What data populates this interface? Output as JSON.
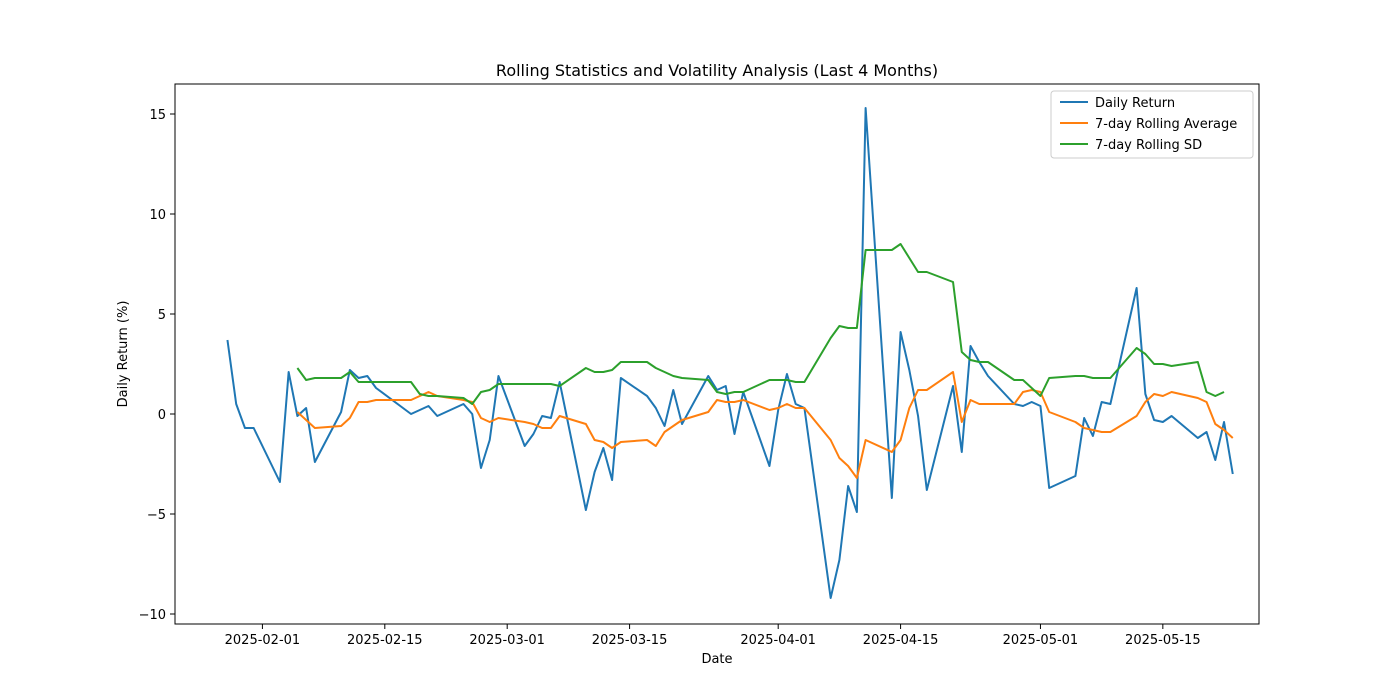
{
  "chart_data": {
    "type": "line",
    "title": "Rolling Statistics and Volatility Analysis (Last 4 Months)",
    "xlabel": "Date",
    "ylabel": "Daily Return (%)",
    "xlim": [
      "2025-01-22",
      "2025-05-26"
    ],
    "ylim": [
      -10.5,
      16.5
    ],
    "x_ticks": [
      "2025-02-01",
      "2025-02-15",
      "2025-03-01",
      "2025-03-15",
      "2025-04-01",
      "2025-04-15",
      "2025-05-01",
      "2025-05-15"
    ],
    "y_ticks": [
      -10,
      -5,
      0,
      5,
      10,
      15
    ],
    "grid": false,
    "legend_position": "top-right",
    "series": [
      {
        "name": "Daily Return",
        "color": "#1f77b4",
        "points": [
          [
            "2025-01-28",
            3.7
          ],
          [
            "2025-01-29",
            0.5
          ],
          [
            "2025-01-30",
            -0.7
          ],
          [
            "2025-01-31",
            -0.7
          ],
          [
            "2025-02-03",
            -3.4
          ],
          [
            "2025-02-04",
            2.1
          ],
          [
            "2025-02-05",
            -0.1
          ],
          [
            "2025-02-06",
            0.3
          ],
          [
            "2025-02-07",
            -2.4
          ],
          [
            "2025-02-10",
            0.1
          ],
          [
            "2025-02-11",
            2.2
          ],
          [
            "2025-02-12",
            1.8
          ],
          [
            "2025-02-13",
            1.9
          ],
          [
            "2025-02-14",
            1.3
          ],
          [
            "2025-02-18",
            0.0
          ],
          [
            "2025-02-20",
            0.4
          ],
          [
            "2025-02-21",
            -0.1
          ],
          [
            "2025-02-24",
            0.5
          ],
          [
            "2025-02-25",
            0.0
          ],
          [
            "2025-02-26",
            -2.7
          ],
          [
            "2025-02-27",
            -1.3
          ],
          [
            "2025-02-28",
            1.9
          ],
          [
            "2025-03-03",
            -1.6
          ],
          [
            "2025-03-04",
            -1.0
          ],
          [
            "2025-03-05",
            -0.1
          ],
          [
            "2025-03-06",
            -0.2
          ],
          [
            "2025-03-07",
            1.6
          ],
          [
            "2025-03-10",
            -4.8
          ],
          [
            "2025-03-11",
            -2.9
          ],
          [
            "2025-03-12",
            -1.7
          ],
          [
            "2025-03-13",
            -3.3
          ],
          [
            "2025-03-14",
            1.8
          ],
          [
            "2025-03-17",
            0.9
          ],
          [
            "2025-03-18",
            0.3
          ],
          [
            "2025-03-19",
            -0.6
          ],
          [
            "2025-03-20",
            1.2
          ],
          [
            "2025-03-21",
            -0.5
          ],
          [
            "2025-03-24",
            1.9
          ],
          [
            "2025-03-25",
            1.2
          ],
          [
            "2025-03-26",
            1.4
          ],
          [
            "2025-03-27",
            -1.0
          ],
          [
            "2025-03-28",
            1.1
          ],
          [
            "2025-03-31",
            -2.6
          ],
          [
            "2025-04-01",
            0.2
          ],
          [
            "2025-04-02",
            2.0
          ],
          [
            "2025-04-03",
            0.5
          ],
          [
            "2025-04-04",
            0.3
          ],
          [
            "2025-04-07",
            -9.2
          ],
          [
            "2025-04-08",
            -7.3
          ],
          [
            "2025-04-09",
            -3.6
          ],
          [
            "2025-04-10",
            -4.9
          ],
          [
            "2025-04-11",
            15.3
          ],
          [
            "2025-04-14",
            -4.2
          ],
          [
            "2025-04-15",
            4.1
          ],
          [
            "2025-04-16",
            2.2
          ],
          [
            "2025-04-17",
            -0.1
          ],
          [
            "2025-04-18",
            -3.8
          ],
          [
            "2025-04-21",
            1.4
          ],
          [
            "2025-04-22",
            -1.9
          ],
          [
            "2025-04-23",
            3.4
          ],
          [
            "2025-04-24",
            2.6
          ],
          [
            "2025-04-25",
            1.9
          ],
          [
            "2025-04-28",
            0.5
          ],
          [
            "2025-04-29",
            0.4
          ],
          [
            "2025-04-30",
            0.6
          ],
          [
            "2025-05-01",
            0.4
          ],
          [
            "2025-05-02",
            -3.7
          ],
          [
            "2025-05-05",
            -3.1
          ],
          [
            "2025-05-06",
            -0.2
          ],
          [
            "2025-05-07",
            -1.1
          ],
          [
            "2025-05-08",
            0.6
          ],
          [
            "2025-05-09",
            0.5
          ],
          [
            "2025-05-12",
            6.3
          ],
          [
            "2025-05-13",
            1.0
          ],
          [
            "2025-05-14",
            -0.3
          ],
          [
            "2025-05-15",
            -0.4
          ],
          [
            "2025-05-16",
            -0.1
          ],
          [
            "2025-05-19",
            -1.2
          ],
          [
            "2025-05-20",
            -0.9
          ],
          [
            "2025-05-21",
            -2.3
          ],
          [
            "2025-05-22",
            -0.4
          ],
          [
            "2025-05-23",
            -3.0
          ]
        ]
      },
      {
        "name": "7-day Rolling Average",
        "color": "#ff7f0e",
        "points": [
          [
            "2025-02-05",
            0.1
          ],
          [
            "2025-02-06",
            -0.3
          ],
          [
            "2025-02-07",
            -0.7
          ],
          [
            "2025-02-10",
            -0.6
          ],
          [
            "2025-02-11",
            -0.2
          ],
          [
            "2025-02-12",
            0.6
          ],
          [
            "2025-02-13",
            0.6
          ],
          [
            "2025-02-14",
            0.7
          ],
          [
            "2025-02-18",
            0.7
          ],
          [
            "2025-02-20",
            1.1
          ],
          [
            "2025-02-21",
            0.9
          ],
          [
            "2025-02-24",
            0.7
          ],
          [
            "2025-02-25",
            0.6
          ],
          [
            "2025-02-26",
            -0.2
          ],
          [
            "2025-02-27",
            -0.4
          ],
          [
            "2025-02-28",
            -0.2
          ],
          [
            "2025-03-03",
            -0.4
          ],
          [
            "2025-03-04",
            -0.5
          ],
          [
            "2025-03-05",
            -0.7
          ],
          [
            "2025-03-06",
            -0.7
          ],
          [
            "2025-03-07",
            -0.1
          ],
          [
            "2025-03-10",
            -0.5
          ],
          [
            "2025-03-11",
            -1.3
          ],
          [
            "2025-03-12",
            -1.4
          ],
          [
            "2025-03-13",
            -1.7
          ],
          [
            "2025-03-14",
            -1.4
          ],
          [
            "2025-03-17",
            -1.3
          ],
          [
            "2025-03-18",
            -1.6
          ],
          [
            "2025-03-19",
            -0.9
          ],
          [
            "2025-03-20",
            -0.6
          ],
          [
            "2025-03-21",
            -0.3
          ],
          [
            "2025-03-24",
            0.1
          ],
          [
            "2025-03-25",
            0.7
          ],
          [
            "2025-03-26",
            0.6
          ],
          [
            "2025-03-27",
            0.6
          ],
          [
            "2025-03-28",
            0.7
          ],
          [
            "2025-03-31",
            0.2
          ],
          [
            "2025-04-01",
            0.3
          ],
          [
            "2025-04-02",
            0.5
          ],
          [
            "2025-04-03",
            0.3
          ],
          [
            "2025-04-04",
            0.3
          ],
          [
            "2025-04-07",
            -1.3
          ],
          [
            "2025-04-08",
            -2.2
          ],
          [
            "2025-04-09",
            -2.6
          ],
          [
            "2025-04-10",
            -3.2
          ],
          [
            "2025-04-11",
            -1.3
          ],
          [
            "2025-04-14",
            -1.9
          ],
          [
            "2025-04-15",
            -1.3
          ],
          [
            "2025-04-16",
            0.3
          ],
          [
            "2025-04-17",
            1.2
          ],
          [
            "2025-04-18",
            1.2
          ],
          [
            "2025-04-21",
            2.1
          ],
          [
            "2025-04-22",
            -0.4
          ],
          [
            "2025-04-23",
            0.7
          ],
          [
            "2025-04-24",
            0.5
          ],
          [
            "2025-04-25",
            0.5
          ],
          [
            "2025-04-28",
            0.5
          ],
          [
            "2025-04-29",
            1.1
          ],
          [
            "2025-04-30",
            1.2
          ],
          [
            "2025-05-01",
            1.1
          ],
          [
            "2025-05-02",
            0.1
          ],
          [
            "2025-05-05",
            -0.4
          ],
          [
            "2025-05-06",
            -0.7
          ],
          [
            "2025-05-07",
            -0.8
          ],
          [
            "2025-05-08",
            -0.9
          ],
          [
            "2025-05-09",
            -0.9
          ],
          [
            "2025-05-12",
            -0.1
          ],
          [
            "2025-05-13",
            0.6
          ],
          [
            "2025-05-14",
            1.0
          ],
          [
            "2025-05-15",
            0.9
          ],
          [
            "2025-05-16",
            1.1
          ],
          [
            "2025-05-19",
            0.8
          ],
          [
            "2025-05-20",
            0.6
          ],
          [
            "2025-05-21",
            -0.5
          ],
          [
            "2025-05-22",
            -0.8
          ],
          [
            "2025-05-23",
            -1.2
          ]
        ]
      },
      {
        "name": "7-day Rolling SD",
        "color": "#2ca02c",
        "points": [
          [
            "2025-02-05",
            2.3
          ],
          [
            "2025-02-06",
            1.7
          ],
          [
            "2025-02-07",
            1.8
          ],
          [
            "2025-02-10",
            1.8
          ],
          [
            "2025-02-11",
            2.1
          ],
          [
            "2025-02-12",
            1.6
          ],
          [
            "2025-02-13",
            1.6
          ],
          [
            "2025-02-14",
            1.6
          ],
          [
            "2025-02-18",
            1.6
          ],
          [
            "2025-02-19",
            1.0
          ],
          [
            "2025-02-20",
            0.9
          ],
          [
            "2025-02-21",
            0.9
          ],
          [
            "2025-02-24",
            0.8
          ],
          [
            "2025-02-25",
            0.5
          ],
          [
            "2025-02-26",
            1.1
          ],
          [
            "2025-02-27",
            1.2
          ],
          [
            "2025-02-28",
            1.5
          ],
          [
            "2025-03-03",
            1.5
          ],
          [
            "2025-03-04",
            1.5
          ],
          [
            "2025-03-05",
            1.5
          ],
          [
            "2025-03-06",
            1.5
          ],
          [
            "2025-03-07",
            1.4
          ],
          [
            "2025-03-10",
            2.3
          ],
          [
            "2025-03-11",
            2.1
          ],
          [
            "2025-03-12",
            2.1
          ],
          [
            "2025-03-13",
            2.2
          ],
          [
            "2025-03-14",
            2.6
          ],
          [
            "2025-03-17",
            2.6
          ],
          [
            "2025-03-18",
            2.3
          ],
          [
            "2025-03-19",
            2.1
          ],
          [
            "2025-03-20",
            1.9
          ],
          [
            "2025-03-21",
            1.8
          ],
          [
            "2025-03-24",
            1.7
          ],
          [
            "2025-03-25",
            1.1
          ],
          [
            "2025-03-26",
            1.0
          ],
          [
            "2025-03-27",
            1.1
          ],
          [
            "2025-03-28",
            1.1
          ],
          [
            "2025-03-31",
            1.7
          ],
          [
            "2025-04-01",
            1.7
          ],
          [
            "2025-04-02",
            1.7
          ],
          [
            "2025-04-03",
            1.6
          ],
          [
            "2025-04-04",
            1.6
          ],
          [
            "2025-04-07",
            3.8
          ],
          [
            "2025-04-08",
            4.4
          ],
          [
            "2025-04-09",
            4.3
          ],
          [
            "2025-04-10",
            4.3
          ],
          [
            "2025-04-11",
            8.2
          ],
          [
            "2025-04-14",
            8.2
          ],
          [
            "2025-04-15",
            8.5
          ],
          [
            "2025-04-16",
            7.8
          ],
          [
            "2025-04-17",
            7.1
          ],
          [
            "2025-04-18",
            7.1
          ],
          [
            "2025-04-21",
            6.6
          ],
          [
            "2025-04-22",
            3.1
          ],
          [
            "2025-04-23",
            2.7
          ],
          [
            "2025-04-24",
            2.6
          ],
          [
            "2025-04-25",
            2.6
          ],
          [
            "2025-04-28",
            1.7
          ],
          [
            "2025-04-29",
            1.7
          ],
          [
            "2025-04-30",
            1.3
          ],
          [
            "2025-05-01",
            0.9
          ],
          [
            "2025-05-02",
            1.8
          ],
          [
            "2025-05-05",
            1.9
          ],
          [
            "2025-05-06",
            1.9
          ],
          [
            "2025-05-07",
            1.8
          ],
          [
            "2025-05-08",
            1.8
          ],
          [
            "2025-05-09",
            1.8
          ],
          [
            "2025-05-12",
            3.3
          ],
          [
            "2025-05-13",
            3.0
          ],
          [
            "2025-05-14",
            2.5
          ],
          [
            "2025-05-15",
            2.5
          ],
          [
            "2025-05-16",
            2.4
          ],
          [
            "2025-05-19",
            2.6
          ],
          [
            "2025-05-20",
            1.1
          ],
          [
            "2025-05-21",
            0.9
          ],
          [
            "2025-05-22",
            1.1
          ]
        ]
      }
    ]
  }
}
